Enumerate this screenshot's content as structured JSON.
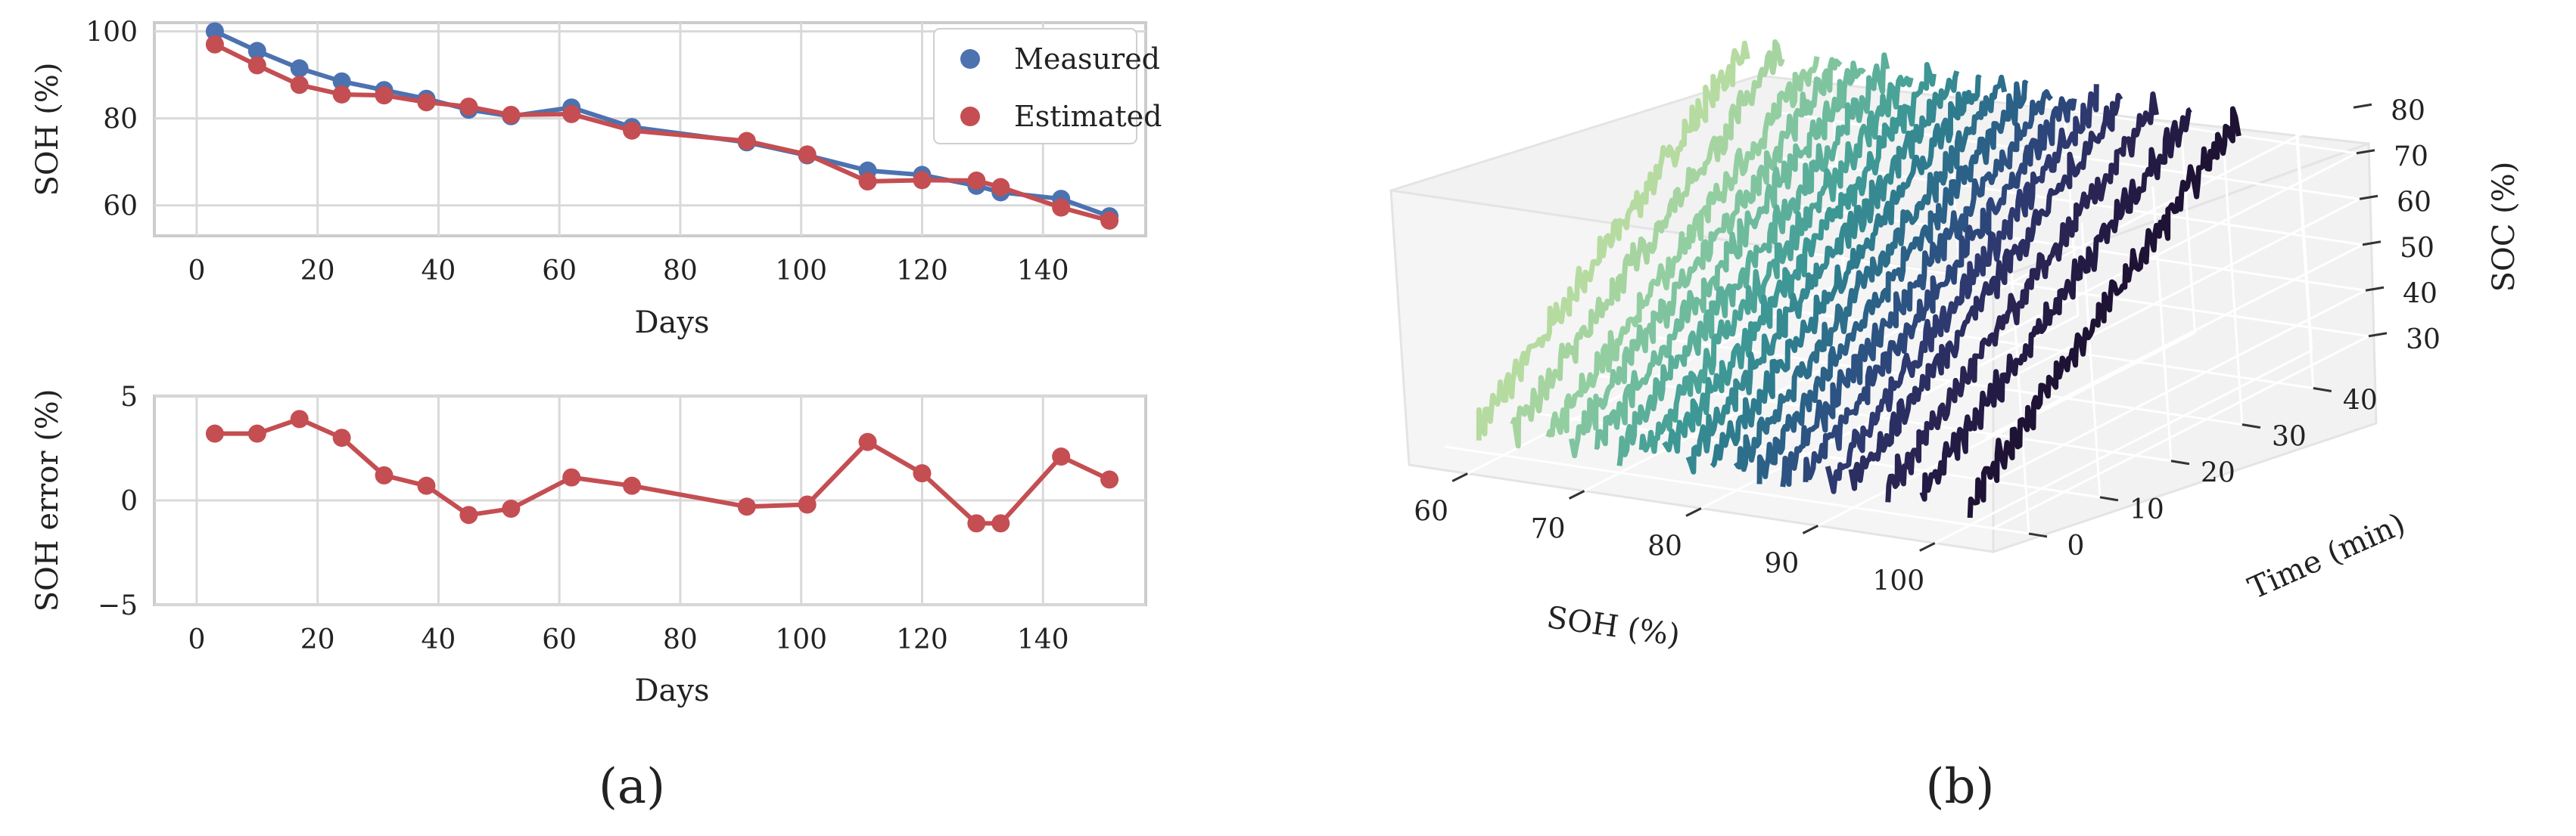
{
  "figure": {
    "panel_a_label": "(a)",
    "panel_b_label": "(b)"
  },
  "colors": {
    "measured": "#4c72b0",
    "estimated": "#c44e52",
    "grid": "#d9d9d9",
    "frame": "#cccccc",
    "pane": "#f2f2f2",
    "colormap": [
      "#b6dba1",
      "#8fcca1",
      "#63b59c",
      "#3f9a95",
      "#2e7b8e",
      "#2b5d86",
      "#2e3f76",
      "#2a2656",
      "#1e1335"
    ]
  },
  "chart_data": [
    {
      "id": "soh-vs-days",
      "type": "line",
      "title": "",
      "xlabel": "Days",
      "ylabel": "SOH (%)",
      "xlim": [
        -7,
        157
      ],
      "ylim": [
        53,
        102
      ],
      "xticks": [
        0,
        20,
        40,
        60,
        80,
        100,
        120,
        140
      ],
      "yticks": [
        60,
        80,
        100
      ],
      "xtick_labels": [
        "0",
        "20",
        "40",
        "60",
        "80",
        "100",
        "120",
        "140"
      ],
      "ytick_labels": [
        "60",
        "80",
        "100"
      ],
      "grid": true,
      "legend": "top-right",
      "x": [
        3,
        10,
        17,
        24,
        31,
        38,
        45,
        52,
        62,
        72,
        91,
        101,
        111,
        120,
        129,
        133,
        143,
        151
      ],
      "series": [
        {
          "name": "Measured",
          "color_key": "measured",
          "values": [
            100,
            95.5,
            91.5,
            88.5,
            86.5,
            84.5,
            82,
            80.5,
            82.5,
            78,
            74.5,
            71.5,
            68,
            67,
            64.5,
            63,
            61.5,
            57.5
          ]
        },
        {
          "name": "Estimated",
          "color_key": "estimated",
          "values": [
            97,
            92.2,
            87.7,
            85.5,
            85.3,
            83.7,
            82.7,
            80.8,
            81,
            77.2,
            74.8,
            71.7,
            65.5,
            65.8,
            65.7,
            64.2,
            59.5,
            56.5
          ]
        }
      ]
    },
    {
      "id": "soh-error",
      "type": "line",
      "title": "",
      "xlabel": "Days",
      "ylabel": "SOH error (%)",
      "xlim": [
        -7,
        157
      ],
      "ylim": [
        -5,
        5
      ],
      "xticks": [
        0,
        20,
        40,
        60,
        80,
        100,
        120,
        140
      ],
      "yticks": [
        -5,
        0,
        5
      ],
      "xtick_labels": [
        "0",
        "20",
        "40",
        "60",
        "80",
        "100",
        "120",
        "140"
      ],
      "ytick_labels": [
        "−5",
        "0",
        "5"
      ],
      "grid": true,
      "x": [
        3,
        10,
        17,
        24,
        31,
        38,
        45,
        52,
        62,
        72,
        91,
        101,
        111,
        120,
        129,
        133,
        143,
        151
      ],
      "series": [
        {
          "name": "SOH error",
          "color_key": "estimated",
          "values": [
            3.2,
            3.2,
            3.9,
            3.0,
            1.2,
            0.7,
            -0.7,
            -0.4,
            1.1,
            0.7,
            -0.3,
            -0.2,
            2.8,
            1.3,
            -1.1,
            -1.1,
            2.1,
            1.0
          ]
        }
      ]
    },
    {
      "id": "soc-surface",
      "type": "line3d",
      "title": "",
      "xlabel": "SOH (%)",
      "ylabel": "Time (min)",
      "zlabel": "SOC (%)",
      "xlim": [
        55,
        105
      ],
      "ylim": [
        -5,
        48
      ],
      "zlim": [
        25,
        85
      ],
      "xticks": [
        60,
        70,
        80,
        90,
        100
      ],
      "yticks": [
        0,
        10,
        20,
        30,
        40
      ],
      "zticks": [
        30,
        40,
        50,
        60,
        70,
        80
      ],
      "grid": true,
      "curves_soh": [
        58,
        61,
        64,
        66,
        68,
        70,
        72,
        74,
        76,
        78,
        80,
        82,
        84,
        86,
        88,
        90,
        93,
        96,
        100
      ],
      "time_range": [
        0,
        40
      ],
      "soc_range": [
        30,
        82
      ]
    }
  ]
}
